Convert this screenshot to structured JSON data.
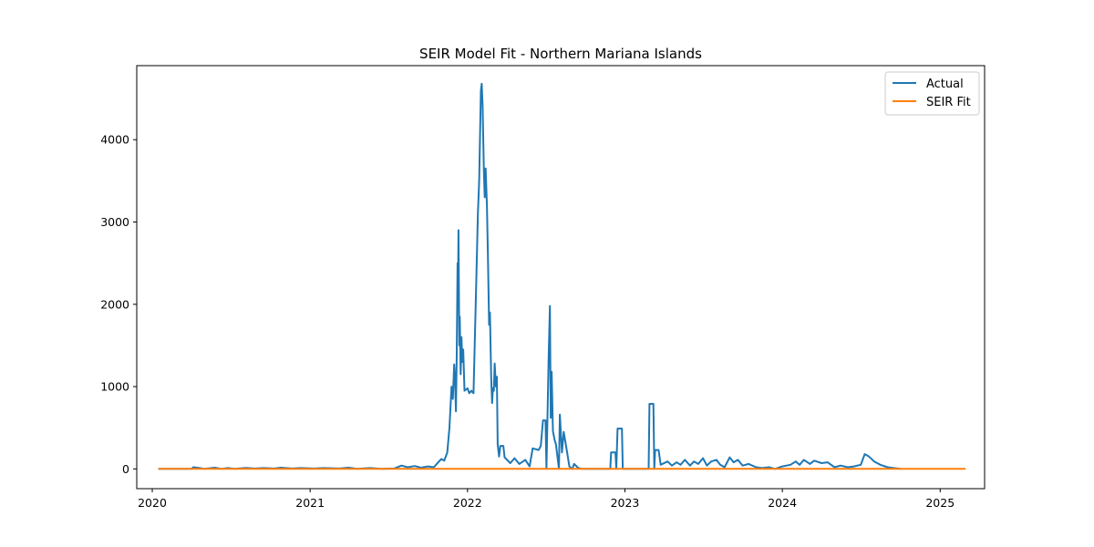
{
  "chart_data": {
    "type": "line",
    "title": "SEIR Model Fit - Northern Mariana Islands",
    "xlabel": "",
    "ylabel": "",
    "xlim": [
      "2019-11-26",
      "2025-04-14"
    ],
    "ylim": [
      -240,
      4900
    ],
    "x_ticks": [
      "2020",
      "2021",
      "2022",
      "2023",
      "2024",
      "2025"
    ],
    "y_ticks": [
      0,
      1000,
      2000,
      3000,
      4000
    ],
    "grid": false,
    "legend_position": "top-right",
    "series": [
      {
        "name": "Actual",
        "color": "#1f77b4",
        "points": [
          [
            "2020-01-15",
            0
          ],
          [
            "2020-04-01",
            0
          ],
          [
            "2020-04-05",
            20
          ],
          [
            "2020-04-20",
            10
          ],
          [
            "2020-05-01",
            0
          ],
          [
            "2020-05-25",
            15
          ],
          [
            "2020-06-10",
            0
          ],
          [
            "2020-06-25",
            10
          ],
          [
            "2020-07-10",
            0
          ],
          [
            "2020-08-05",
            12
          ],
          [
            "2020-08-25",
            5
          ],
          [
            "2020-09-15",
            10
          ],
          [
            "2020-10-10",
            5
          ],
          [
            "2020-10-25",
            15
          ],
          [
            "2020-11-20",
            5
          ],
          [
            "2020-12-10",
            10
          ],
          [
            "2021-01-10",
            5
          ],
          [
            "2021-02-01",
            10
          ],
          [
            "2021-03-10",
            5
          ],
          [
            "2021-04-01",
            15
          ],
          [
            "2021-04-20",
            0
          ],
          [
            "2021-05-20",
            10
          ],
          [
            "2021-06-15",
            0
          ],
          [
            "2021-07-15",
            5
          ],
          [
            "2021-08-01",
            40
          ],
          [
            "2021-08-15",
            20
          ],
          [
            "2021-09-01",
            35
          ],
          [
            "2021-09-15",
            15
          ],
          [
            "2021-10-01",
            30
          ],
          [
            "2021-10-15",
            20
          ],
          [
            "2021-10-25",
            80
          ],
          [
            "2021-11-01",
            120
          ],
          [
            "2021-11-08",
            100
          ],
          [
            "2021-11-15",
            200
          ],
          [
            "2021-11-20",
            500
          ],
          [
            "2021-11-25",
            1000
          ],
          [
            "2021-11-28",
            850
          ],
          [
            "2021-12-01",
            1270
          ],
          [
            "2021-12-03",
            1100
          ],
          [
            "2021-12-05",
            700
          ],
          [
            "2021-12-07",
            1400
          ],
          [
            "2021-12-09",
            2500
          ],
          [
            "2021-12-10",
            2150
          ],
          [
            "2021-12-11",
            2900
          ],
          [
            "2021-12-13",
            1500
          ],
          [
            "2021-12-14",
            1850
          ],
          [
            "2021-12-16",
            1150
          ],
          [
            "2021-12-18",
            1600
          ],
          [
            "2021-12-20",
            1300
          ],
          [
            "2021-12-22",
            1450
          ],
          [
            "2021-12-25",
            950
          ],
          [
            "2022-01-01",
            980
          ],
          [
            "2022-01-05",
            920
          ],
          [
            "2022-01-10",
            950
          ],
          [
            "2022-01-15",
            920
          ],
          [
            "2022-01-20",
            2000
          ],
          [
            "2022-01-25",
            3100
          ],
          [
            "2022-01-28",
            3500
          ],
          [
            "2022-02-01",
            4600
          ],
          [
            "2022-02-03",
            4680
          ],
          [
            "2022-02-05",
            4400
          ],
          [
            "2022-02-08",
            3600
          ],
          [
            "2022-02-10",
            3300
          ],
          [
            "2022-02-12",
            3650
          ],
          [
            "2022-02-15",
            3200
          ],
          [
            "2022-02-17",
            2650
          ],
          [
            "2022-02-20",
            1750
          ],
          [
            "2022-02-22",
            1900
          ],
          [
            "2022-02-25",
            1100
          ],
          [
            "2022-02-27",
            800
          ],
          [
            "2022-03-01",
            980
          ],
          [
            "2022-03-03",
            950
          ],
          [
            "2022-03-05",
            1280
          ],
          [
            "2022-03-08",
            1000
          ],
          [
            "2022-03-10",
            1120
          ],
          [
            "2022-03-12",
            300
          ],
          [
            "2022-03-15",
            150
          ],
          [
            "2022-03-18",
            280
          ],
          [
            "2022-03-25",
            280
          ],
          [
            "2022-03-28",
            140
          ],
          [
            "2022-04-10",
            70
          ],
          [
            "2022-04-20",
            130
          ],
          [
            "2022-05-01",
            60
          ],
          [
            "2022-05-15",
            110
          ],
          [
            "2022-05-25",
            30
          ],
          [
            "2022-06-01",
            250
          ],
          [
            "2022-06-15",
            230
          ],
          [
            "2022-06-20",
            280
          ],
          [
            "2022-06-25",
            590
          ],
          [
            "2022-07-01",
            590
          ],
          [
            "2022-07-03",
            0
          ],
          [
            "2022-07-08",
            1350
          ],
          [
            "2022-07-11",
            1980
          ],
          [
            "2022-07-13",
            620
          ],
          [
            "2022-07-15",
            1180
          ],
          [
            "2022-07-18",
            460
          ],
          [
            "2022-07-22",
            350
          ],
          [
            "2022-07-25",
            300
          ],
          [
            "2022-08-01",
            0
          ],
          [
            "2022-08-03",
            660
          ],
          [
            "2022-08-08",
            200
          ],
          [
            "2022-08-12",
            450
          ],
          [
            "2022-08-20",
            200
          ],
          [
            "2022-08-25",
            30
          ],
          [
            "2022-09-01",
            0
          ],
          [
            "2022-09-05",
            60
          ],
          [
            "2022-09-15",
            10
          ],
          [
            "2022-09-25",
            0
          ],
          [
            "2022-11-28",
            0
          ],
          [
            "2022-11-30",
            200
          ],
          [
            "2022-12-10",
            200
          ],
          [
            "2022-12-12",
            0
          ],
          [
            "2022-12-15",
            490
          ],
          [
            "2022-12-25",
            490
          ],
          [
            "2022-12-27",
            0
          ],
          [
            "2023-02-25",
            0
          ],
          [
            "2023-02-27",
            790
          ],
          [
            "2023-03-08",
            790
          ],
          [
            "2023-03-10",
            0
          ],
          [
            "2023-03-12",
            230
          ],
          [
            "2023-03-20",
            230
          ],
          [
            "2023-03-25",
            50
          ],
          [
            "2023-04-10",
            90
          ],
          [
            "2023-04-20",
            40
          ],
          [
            "2023-05-01",
            80
          ],
          [
            "2023-05-10",
            50
          ],
          [
            "2023-05-20",
            110
          ],
          [
            "2023-06-01",
            40
          ],
          [
            "2023-06-10",
            90
          ],
          [
            "2023-06-20",
            60
          ],
          [
            "2023-07-01",
            130
          ],
          [
            "2023-07-10",
            40
          ],
          [
            "2023-07-20",
            90
          ],
          [
            "2023-08-01",
            110
          ],
          [
            "2023-08-10",
            50
          ],
          [
            "2023-08-20",
            20
          ],
          [
            "2023-09-01",
            140
          ],
          [
            "2023-09-10",
            80
          ],
          [
            "2023-09-20",
            110
          ],
          [
            "2023-10-01",
            40
          ],
          [
            "2023-10-15",
            60
          ],
          [
            "2023-11-01",
            20
          ],
          [
            "2023-11-15",
            10
          ],
          [
            "2023-12-01",
            20
          ],
          [
            "2023-12-15",
            0
          ],
          [
            "2024-01-01",
            30
          ],
          [
            "2024-01-20",
            50
          ],
          [
            "2024-02-01",
            90
          ],
          [
            "2024-02-10",
            50
          ],
          [
            "2024-02-20",
            110
          ],
          [
            "2024-03-05",
            60
          ],
          [
            "2024-03-15",
            100
          ],
          [
            "2024-04-01",
            70
          ],
          [
            "2024-04-15",
            80
          ],
          [
            "2024-05-01",
            20
          ],
          [
            "2024-05-15",
            40
          ],
          [
            "2024-06-01",
            20
          ],
          [
            "2024-06-15",
            30
          ],
          [
            "2024-07-01",
            50
          ],
          [
            "2024-07-10",
            180
          ],
          [
            "2024-07-20",
            150
          ],
          [
            "2024-08-01",
            90
          ],
          [
            "2024-08-15",
            50
          ],
          [
            "2024-09-01",
            20
          ],
          [
            "2024-09-15",
            10
          ],
          [
            "2024-10-01",
            0
          ]
        ]
      },
      {
        "name": "SEIR Fit",
        "color": "#ff7f0e",
        "points": [
          [
            "2020-01-15",
            0
          ],
          [
            "2025-03-01",
            0
          ]
        ]
      }
    ]
  }
}
